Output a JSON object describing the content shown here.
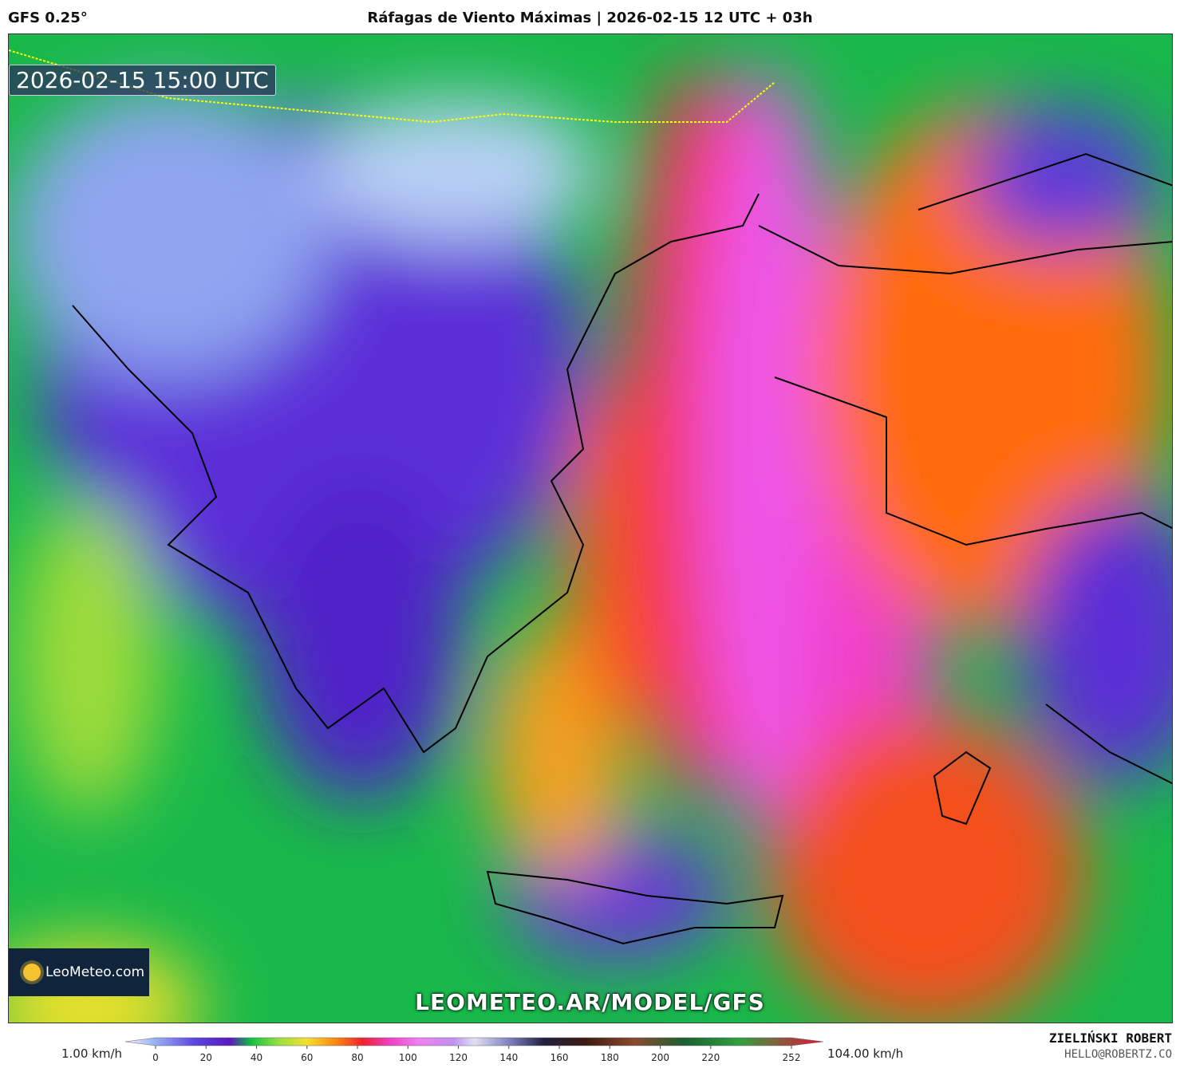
{
  "header": {
    "model": "GFS 0.25°",
    "title": "Ráfagas de Viento Máximas | 2026-02-15 12 UTC + 03h"
  },
  "map": {
    "valid_time": "2026-02-15 15:00 UTC",
    "logo": "LeoMeteo.com",
    "website": "LEOMETEO.AR/MODEL/GFS"
  },
  "colorbar": {
    "min_label": "1.00 km/h",
    "max_label": "104.00 km/h",
    "range": [
      0,
      252
    ],
    "ticks": [
      0,
      20,
      40,
      60,
      80,
      100,
      120,
      140,
      160,
      180,
      200,
      220,
      252
    ]
  },
  "footer": {
    "author": "ZIELIŃSKI ROBERT",
    "email": "HELLO@ROBERTZ.CO"
  }
}
